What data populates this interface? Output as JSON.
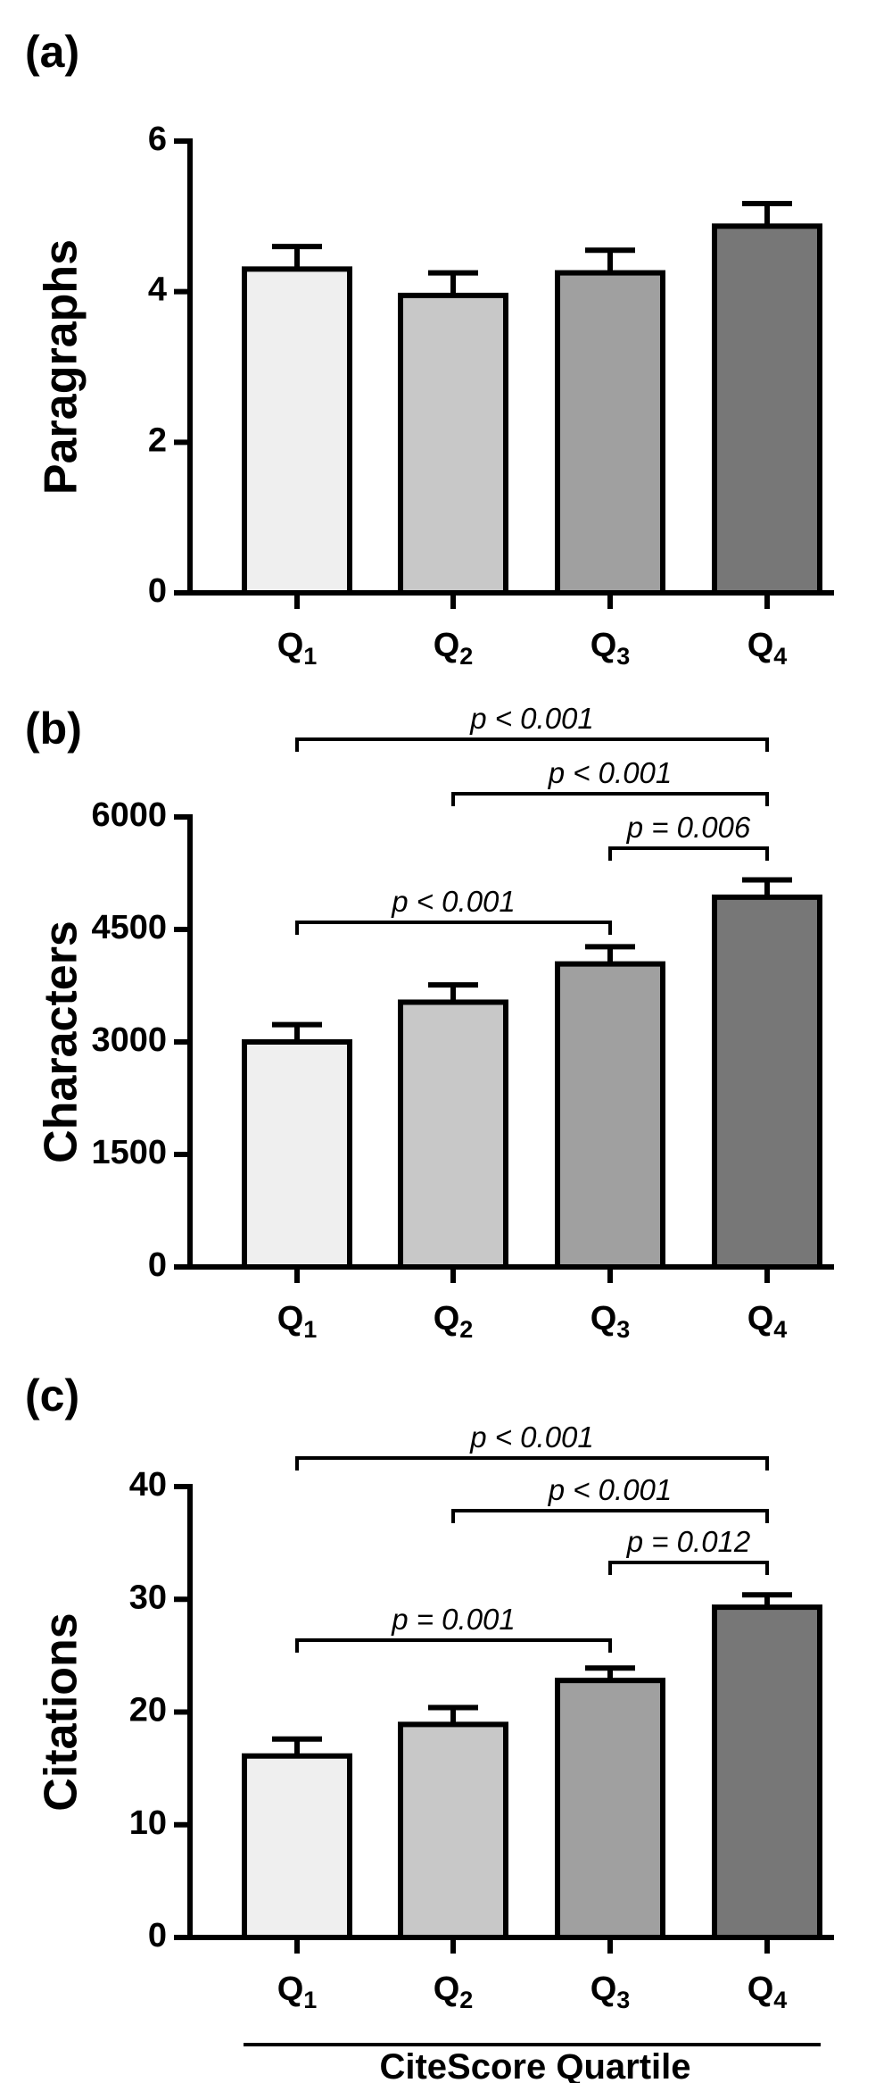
{
  "chart_data": [
    {
      "type": "bar",
      "panel_label": "(a)",
      "categories": [
        "Q1",
        "Q2",
        "Q3",
        "Q4"
      ],
      "values": [
        4.3,
        3.95,
        4.25,
        4.87
      ],
      "errors": [
        0.3,
        0.3,
        0.3,
        0.3
      ],
      "ylabel": "Paragraphs",
      "ylim": [
        0,
        6
      ],
      "yticks": [
        0,
        2,
        4,
        6
      ],
      "colors": [
        "#efefef",
        "#c8c8c8",
        "#a0a0a0",
        "#777777"
      ],
      "significance": []
    },
    {
      "type": "bar",
      "panel_label": "(b)",
      "categories": [
        "Q1",
        "Q2",
        "Q3",
        "Q4"
      ],
      "values": [
        3000,
        3530,
        4040,
        4930
      ],
      "errors": [
        230,
        230,
        230,
        230
      ],
      "ylabel": "Characters",
      "ylim": [
        0,
        6000
      ],
      "yticks": [
        0,
        1500,
        3000,
        4500,
        6000
      ],
      "colors": [
        "#efefef",
        "#c8c8c8",
        "#a0a0a0",
        "#777777"
      ],
      "significance": [
        {
          "from": "Q1",
          "to": "Q4",
          "label": "p < 0.001"
        },
        {
          "from": "Q2",
          "to": "Q4",
          "label": "p < 0.001"
        },
        {
          "from": "Q3",
          "to": "Q4",
          "label": "p = 0.006"
        },
        {
          "from": "Q1",
          "to": "Q3",
          "label": "p < 0.001"
        }
      ]
    },
    {
      "type": "bar",
      "panel_label": "(c)",
      "categories": [
        "Q1",
        "Q2",
        "Q3",
        "Q4"
      ],
      "values": [
        16.1,
        18.9,
        22.8,
        29.3
      ],
      "errors": [
        1.5,
        1.5,
        1.1,
        1.1
      ],
      "ylabel": "Citations",
      "ylim": [
        0,
        40
      ],
      "yticks": [
        0,
        10,
        20,
        30,
        40
      ],
      "colors": [
        "#efefef",
        "#c8c8c8",
        "#a0a0a0",
        "#777777"
      ],
      "significance": [
        {
          "from": "Q1",
          "to": "Q4",
          "label": "p < 0.001"
        },
        {
          "from": "Q2",
          "to": "Q4",
          "label": "p < 0.001"
        },
        {
          "from": "Q3",
          "to": "Q4",
          "label": "p = 0.012"
        },
        {
          "from": "Q1",
          "to": "Q3",
          "label": "p = 0.001"
        }
      ],
      "xlabel": "CiteScore Quartile"
    }
  ]
}
